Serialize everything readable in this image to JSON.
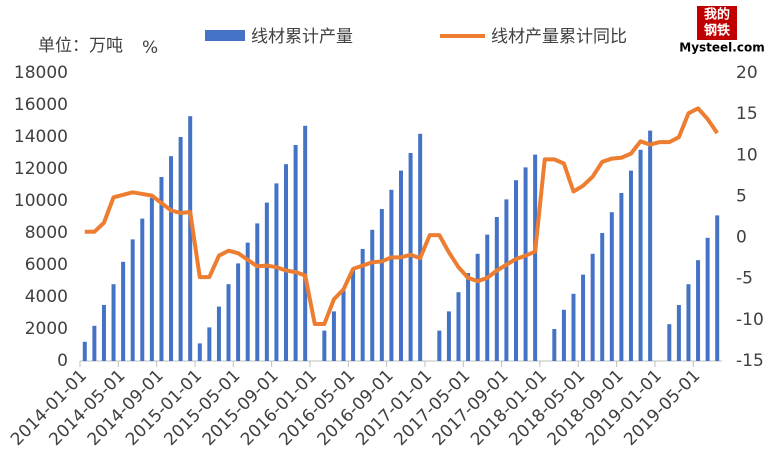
{
  "chart_data": {
    "type": "bar_line",
    "ylabel": "单位：万吨",
    "y2label": "%",
    "categories": [
      "2014-01-01",
      null,
      null,
      null,
      "2014-05-01",
      null,
      null,
      null,
      "2014-09-01",
      null,
      null,
      null,
      "2015-01-01",
      null,
      null,
      null,
      "2015-05-01",
      null,
      null,
      null,
      "2015-09-01",
      null,
      null,
      null,
      "2016-01-01",
      null,
      null,
      null,
      "2016-05-01",
      null,
      null,
      null,
      "2016-09-01",
      null,
      null,
      null,
      "2017-01-01",
      null,
      null,
      null,
      "2017-05-01",
      null,
      null,
      null,
      "2017-09-01",
      null,
      null,
      null,
      "2018-01-01",
      null,
      null,
      null,
      "2018-05-01",
      null,
      null,
      null,
      "2018-09-01",
      null,
      null,
      null,
      "2019-01-01",
      null,
      null,
      null,
      "2019-05-01",
      null,
      null
    ],
    "series": [
      {
        "name": "线材累计产量",
        "color": "#4472c4",
        "type": "bar",
        "values": [
          1200,
          2200,
          3500,
          4800,
          6200,
          7600,
          8900,
          10200,
          11500,
          12800,
          14000,
          15300,
          1100,
          2100,
          3400,
          4800,
          6100,
          7400,
          8600,
          9900,
          11100,
          12300,
          13500,
          14700,
          null,
          1900,
          3100,
          4400,
          5700,
          7000,
          8200,
          9500,
          10700,
          11900,
          13000,
          14200,
          null,
          1900,
          3100,
          4300,
          5500,
          6700,
          7900,
          9000,
          10100,
          11300,
          12100,
          12900,
          null,
          2000,
          3200,
          4200,
          5400,
          6700,
          8000,
          9300,
          10500,
          11900,
          13200,
          14400,
          null,
          2300,
          3500,
          4800,
          6300,
          7700,
          9100
        ]
      },
      {
        "name": "线材产量累计同比",
        "color": "#ed7d31",
        "type": "line",
        "axis": "y2",
        "values": [
          0.7,
          0.7,
          1.8,
          4.9,
          5.2,
          5.5,
          5.3,
          5.1,
          4.2,
          3.3,
          3.0,
          3.1,
          -4.8,
          -4.8,
          -2.2,
          -1.6,
          -1.9,
          -2.7,
          -3.5,
          -3.4,
          -3.6,
          -4.0,
          -4.2,
          -4.6,
          -10.5,
          -10.5,
          -7.5,
          -6.3,
          -3.8,
          -3.4,
          -3.0,
          -2.9,
          -2.4,
          -2.4,
          -2.1,
          -2.5,
          0.3,
          0.3,
          -1.8,
          -3.6,
          -4.9,
          -5.3,
          -4.9,
          -4.0,
          -3.3,
          -2.6,
          -2.2,
          -1.7,
          9.5,
          9.5,
          9.0,
          5.6,
          6.3,
          7.4,
          9.2,
          9.6,
          9.7,
          10.2,
          11.7,
          11.3,
          11.6,
          11.6,
          12.2,
          15.1,
          15.7,
          14.4,
          12.7
        ]
      }
    ],
    "ylim": [
      0,
      18000
    ],
    "yticks": [
      0,
      2000,
      4000,
      6000,
      8000,
      10000,
      12000,
      14000,
      16000,
      18000
    ],
    "y2lim": [
      -15,
      20
    ],
    "y2ticks": [
      -15,
      -10,
      -5,
      0,
      5,
      10,
      15,
      20
    ],
    "legend": "top"
  },
  "logo": {
    "line1": "我的",
    "line2": "钢铁",
    "site": "Mysteel.com"
  }
}
